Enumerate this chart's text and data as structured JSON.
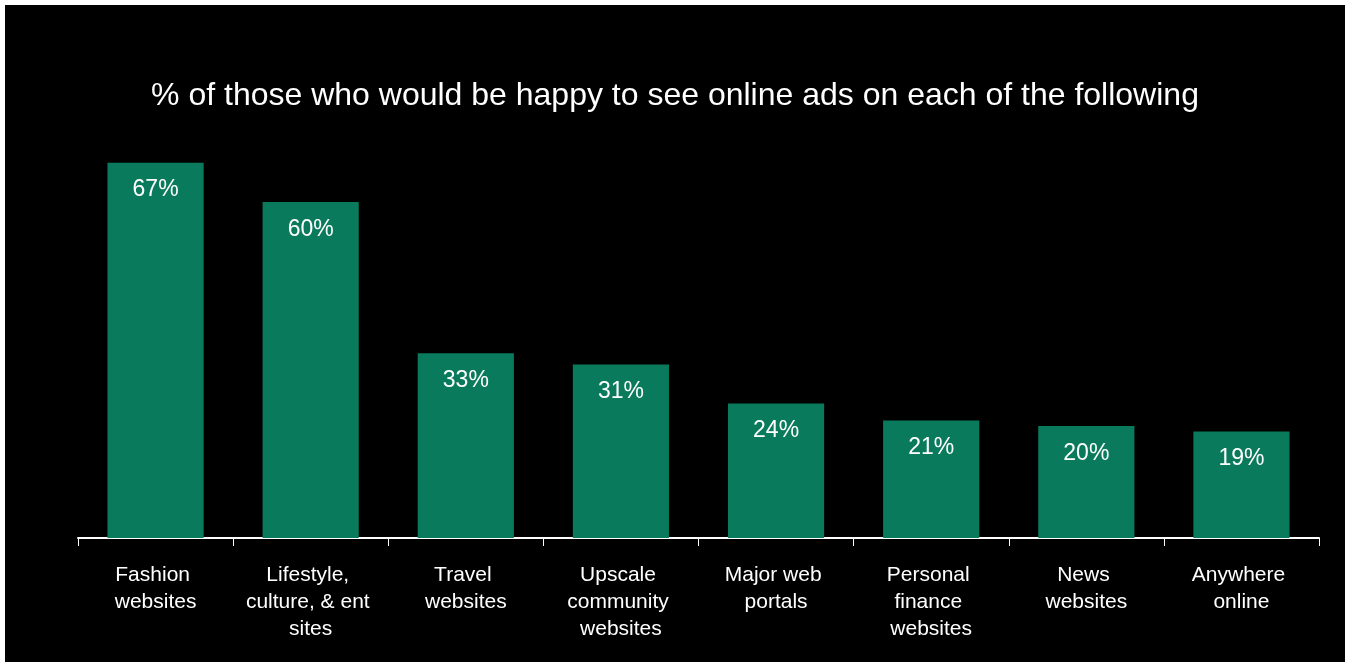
{
  "chart_data": {
    "type": "bar",
    "title": "% of those who would be happy to see online ads on each of the following",
    "categories": [
      "Fashion websites",
      "Lifestyle, culture, & ent sites",
      "Travel websites",
      "Upscale community websites",
      "Major web portals",
      "Personal finance websites",
      "News websites",
      "Anywhere online"
    ],
    "values": [
      67,
      60,
      33,
      31,
      24,
      21,
      20,
      19
    ],
    "value_labels": [
      "67%",
      "60%",
      "33%",
      "31%",
      "24%",
      "21%",
      "20%",
      "19%"
    ],
    "color": "#0a7a5c",
    "grid": false
  }
}
